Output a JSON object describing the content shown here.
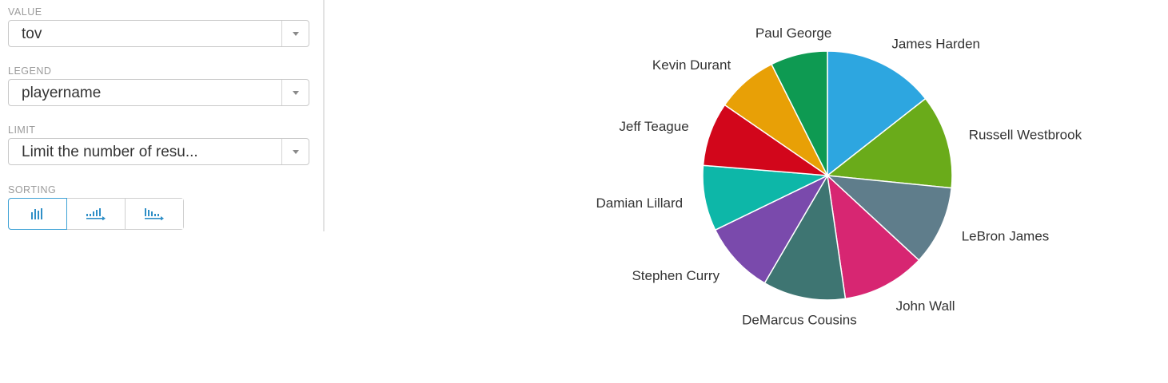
{
  "controls": {
    "value": {
      "label": "VALUE",
      "selected": "tov"
    },
    "legend": {
      "label": "LEGEND",
      "selected": "playername"
    },
    "limit": {
      "label": "LIMIT",
      "placeholder": "Limit the number of resu..."
    },
    "sorting": {
      "label": "SORTING",
      "options": [
        {
          "name": "sort-none-icon",
          "active": true
        },
        {
          "name": "sort-ascending-icon",
          "active": false
        },
        {
          "name": "sort-descending-icon",
          "active": false
        }
      ]
    }
  },
  "colors": {
    "accent": "#3fa2d6",
    "icon": "#2f8fc7"
  },
  "chart_data": {
    "type": "pie",
    "title": "",
    "slices": [
      {
        "label": "James Harden",
        "value": 14.4,
        "color": "#2da6e0"
      },
      {
        "label": "Russell Westbrook",
        "value": 12.2,
        "color": "#6aab1a"
      },
      {
        "label": "LeBron James",
        "value": 10.3,
        "color": "#5f7d8b"
      },
      {
        "label": "John Wall",
        "value": 10.8,
        "color": "#d72672"
      },
      {
        "label": "DeMarcus Cousins",
        "value": 10.7,
        "color": "#3e7572"
      },
      {
        "label": "Stephen Curry",
        "value": 9.4,
        "color": "#7a4aac"
      },
      {
        "label": "Damian Lillard",
        "value": 8.5,
        "color": "#0db7a8"
      },
      {
        "label": "Jeff Teague",
        "value": 8.3,
        "color": "#d2061b"
      },
      {
        "label": "Kevin Durant",
        "value": 8.0,
        "color": "#e8a006"
      },
      {
        "label": "Paul George",
        "value": 7.4,
        "color": "#0e9a52"
      }
    ]
  }
}
